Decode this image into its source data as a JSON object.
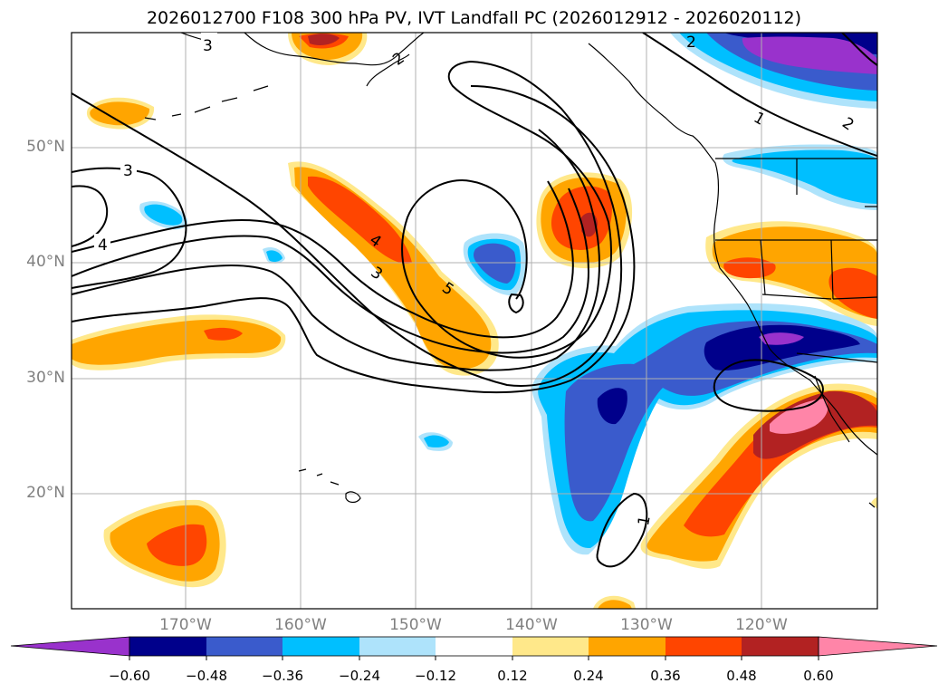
{
  "title": "2026012700 F108 300 hPa PV, IVT Landfall PC (2026012912 - 2026020112)",
  "lat_labels": [
    "50°N",
    "40°N",
    "30°N",
    "20°N"
  ],
  "lon_labels": [
    "170°W",
    "160°W",
    "150°W",
    "140°W",
    "130°W",
    "120°W"
  ],
  "contour_labels": [
    "3",
    "2",
    "2",
    "1",
    "2",
    "3",
    "4",
    "4",
    "3",
    "5",
    "1"
  ],
  "colorbar": {
    "ticks": [
      "−0.60",
      "−0.48",
      "−0.36",
      "−0.24",
      "−0.12",
      "0.12",
      "0.24",
      "0.36",
      "0.48",
      "0.60"
    ],
    "colors": [
      "#9932cc",
      "#00008b",
      "#3a5bcc",
      "#00bfff",
      "#aee3fb",
      "#ffffff",
      "#ffe88a",
      "#ffa500",
      "#ff4500",
      "#b22222",
      "#ff85a8"
    ]
  },
  "colors": {
    "grid": "#b0b0b0",
    "contour": "#000000",
    "coast": "#000000"
  }
}
